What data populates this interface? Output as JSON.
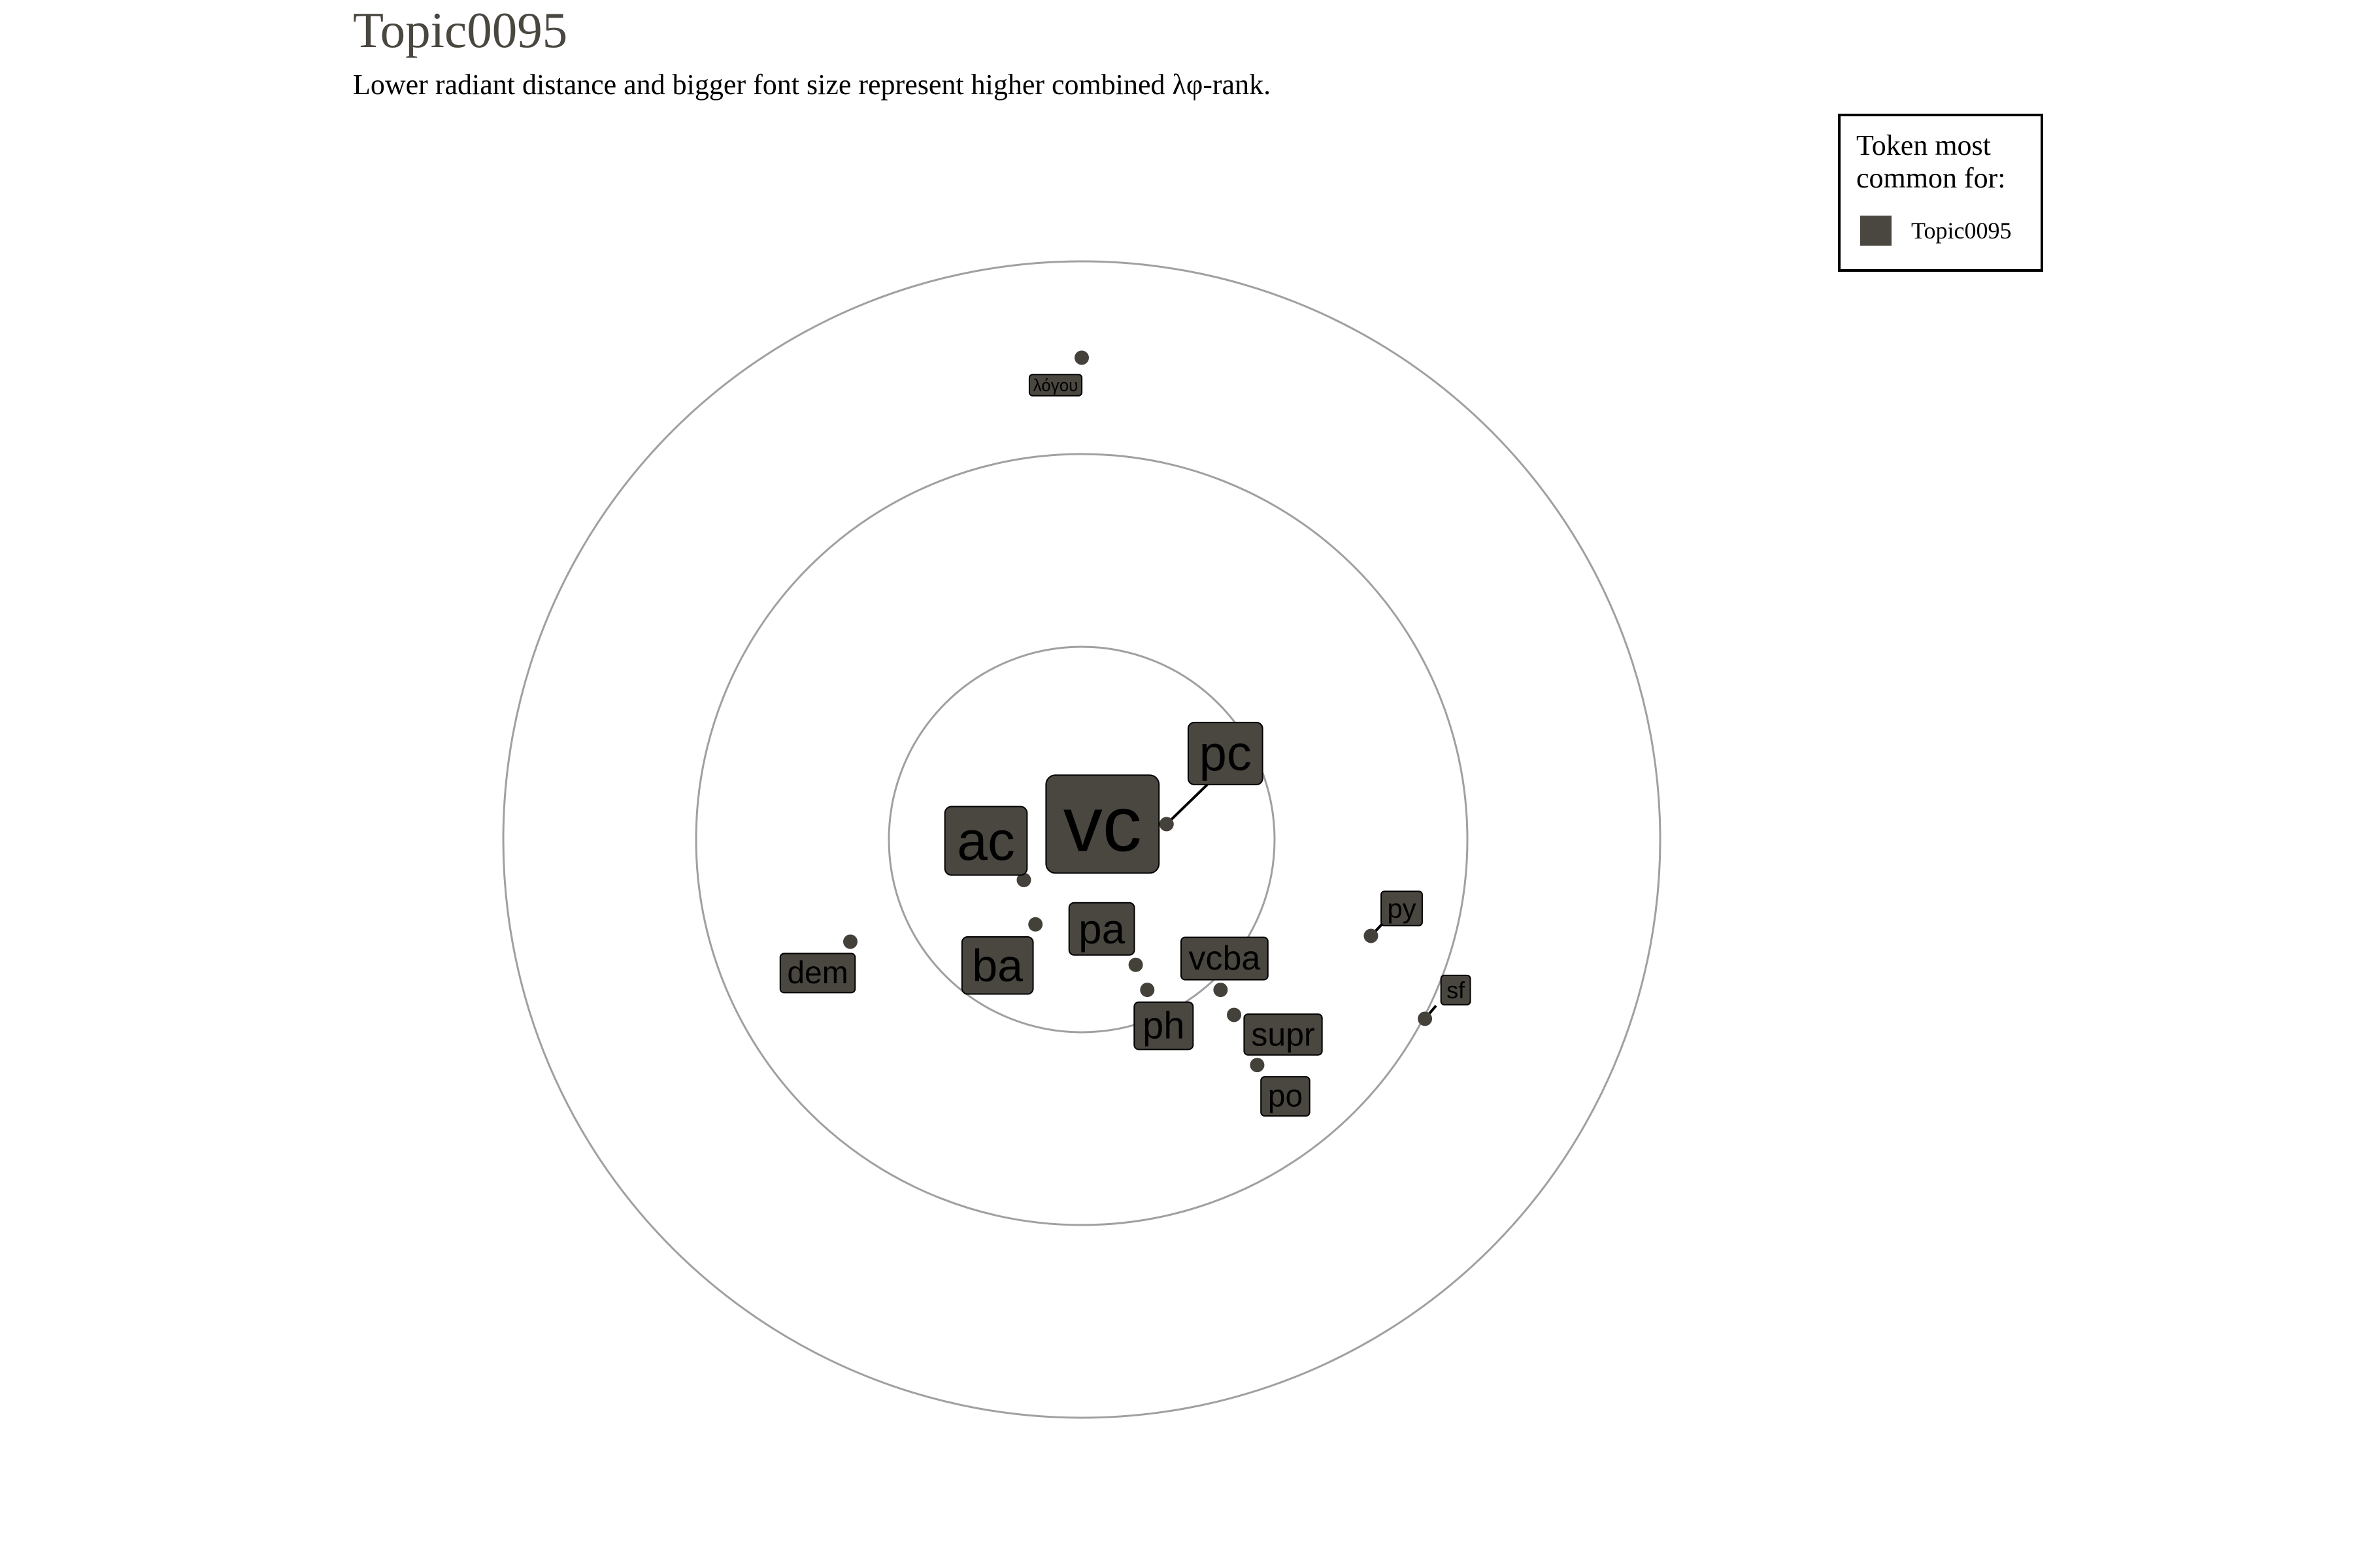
{
  "chart_data": {
    "type": "scatter",
    "title": "Topic0095",
    "subtitle": "Lower radiant distance and bigger font size represent higher combined λφ-rank.",
    "polar": true,
    "rings": 3,
    "grid": true,
    "legend": {
      "title_lines": [
        "Token most",
        "common for:"
      ],
      "entries": [
        {
          "name": "Topic0095",
          "color": "#4a4740"
        }
      ],
      "placement": "top-right"
    },
    "colors": {
      "topic": "#4a4740",
      "ring": "#a0a0a0",
      "point": "#44413b"
    },
    "points": [
      {
        "label": "vc",
        "x": 0.04,
        "y": -0.13,
        "rank": 1
      },
      {
        "label": "pc",
        "x": 0.44,
        "y": 0.08,
        "rank": 2
      },
      {
        "label": "ac",
        "x": -0.3,
        "y": -0.21,
        "rank": 3
      },
      {
        "label": "ba",
        "x": -0.24,
        "y": -0.44,
        "rank": 4
      },
      {
        "label": "pa",
        "x": 0.28,
        "y": -0.65,
        "rank": 5
      },
      {
        "label": "ph",
        "x": 0.34,
        "y": -0.78,
        "rank": 6
      },
      {
        "label": "vcba",
        "x": 0.72,
        "y": -0.78,
        "rank": 7
      },
      {
        "label": "supr",
        "x": 0.79,
        "y": -0.91,
        "rank": 8
      },
      {
        "label": "po",
        "x": 0.91,
        "y": -1.17,
        "rank": 9
      },
      {
        "label": "dem",
        "x": -1.2,
        "y": -0.53,
        "rank": 10
      },
      {
        "label": "py",
        "x": 1.5,
        "y": -0.5,
        "rank": 11
      },
      {
        "label": "sf",
        "x": 1.78,
        "y": -0.93,
        "rank": 12
      },
      {
        "label": "λόγου",
        "x": 0.0,
        "y": 2.5,
        "rank": 13
      }
    ]
  }
}
